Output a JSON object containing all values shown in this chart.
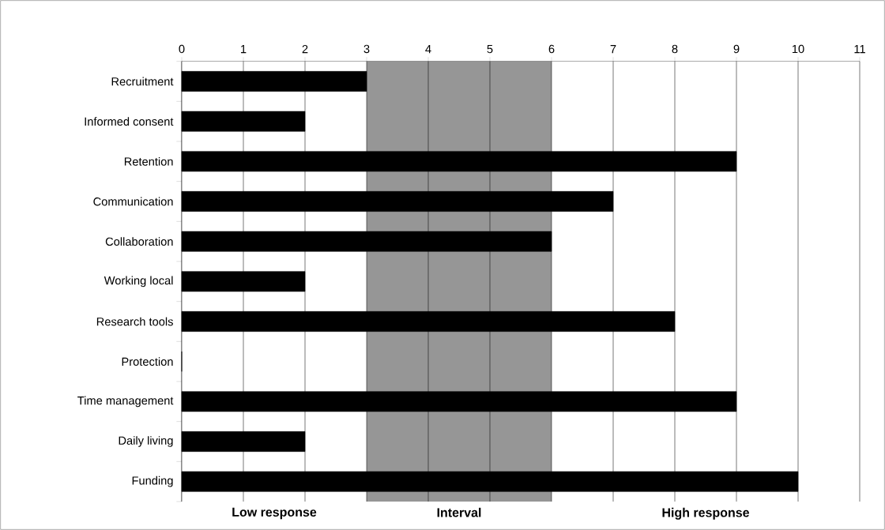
{
  "chart_data": {
    "type": "bar",
    "orientation": "horizontal",
    "categories": [
      "Recruitment",
      "Informed consent",
      "Retention",
      "Communication",
      "Collaboration",
      "Working local",
      "Research tools",
      "Protection",
      "Time management",
      "Daily living",
      "Funding"
    ],
    "values": [
      3,
      2,
      9,
      7,
      6,
      2,
      8,
      0,
      9,
      2,
      10
    ],
    "color": "#000000",
    "xlim": [
      0,
      11
    ],
    "xticks": [
      0,
      1,
      2,
      3,
      4,
      5,
      6,
      7,
      8,
      9,
      10,
      11
    ],
    "grid": "x",
    "bands": [
      {
        "axis": "x",
        "from": 0,
        "to": 3,
        "label": "Low response",
        "color": "#ffffff"
      },
      {
        "axis": "x",
        "from": 3,
        "to": 6,
        "label": "Interval",
        "color": "#969696"
      },
      {
        "axis": "x",
        "from": 6,
        "to": 11,
        "label": "High response",
        "color": "#ffffff"
      }
    ]
  }
}
